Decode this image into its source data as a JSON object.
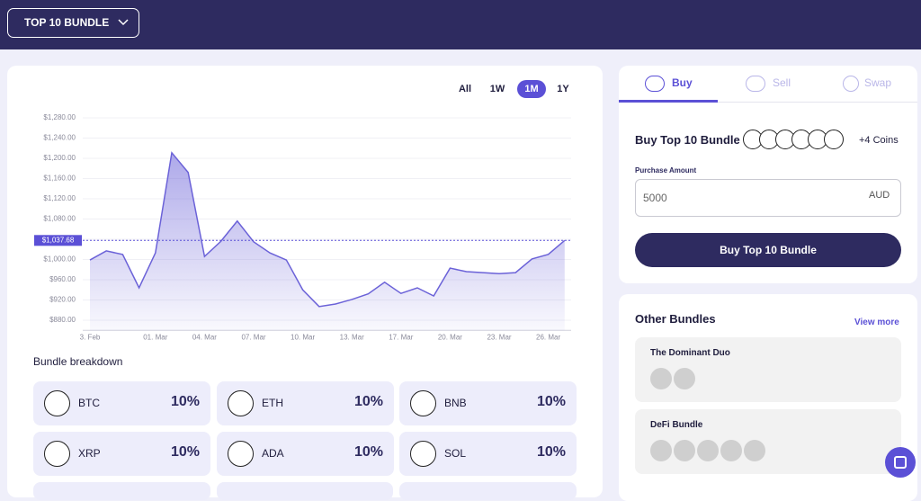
{
  "header": {
    "dropdown": "TOP 10 BUNDLE"
  },
  "chart": {
    "type": "line",
    "ranges": [
      "All",
      "1W",
      "1M",
      "1Y"
    ],
    "active_range": "1M",
    "categories": [
      "3. Feb",
      null,
      null,
      null,
      "01. Mar",
      null,
      null,
      "04. Mar",
      null,
      null,
      "07. Mar",
      null,
      null,
      "10. Mar",
      null,
      null,
      "13. Mar",
      null,
      null,
      "17. Mar",
      null,
      null,
      "20. Mar",
      null,
      null,
      "23. Mar",
      null,
      null,
      "26. Mar",
      null
    ],
    "values": [
      999,
      1017,
      1010,
      944,
      1013,
      1211,
      1172,
      1006,
      1036,
      1076,
      1035,
      1013,
      999,
      940,
      907,
      912,
      921,
      932,
      955,
      933,
      944,
      928,
      983,
      976,
      974,
      972,
      974,
      1001,
      1010,
      1037.68
    ],
    "color": "#6b62d8",
    "ylim": [
      860,
      1300
    ],
    "yticks": [
      {
        "value": 880,
        "label": "$880.00"
      },
      {
        "value": 920,
        "label": "$920.00"
      },
      {
        "value": 960,
        "label": "$960.00"
      },
      {
        "value": 1000,
        "label": "$1,000.00"
      },
      {
        "value": 1040,
        "label": "$1,040.00"
      },
      {
        "value": 1080,
        "label": "$1,080.00"
      },
      {
        "value": 1120,
        "label": "$1,120.00"
      },
      {
        "value": 1160,
        "label": "$1,160.00"
      },
      {
        "value": 1200,
        "label": "$1,200.00"
      },
      {
        "value": 1240,
        "label": "$1,240.00"
      },
      {
        "value": 1280,
        "label": "$1,280.00"
      }
    ],
    "grid": true,
    "current": {
      "value": 1037.68,
      "label": "$1,037.68"
    }
  },
  "breakdown": {
    "title": "Bundle breakdown",
    "items": [
      {
        "name": "BTC",
        "share": "10%"
      },
      {
        "name": "ETH",
        "share": "10%"
      },
      {
        "name": "BNB",
        "share": "10%"
      },
      {
        "name": "XRP",
        "share": "10%"
      },
      {
        "name": "ADA",
        "share": "10%"
      },
      {
        "name": "SOL",
        "share": "10%"
      }
    ]
  },
  "trade": {
    "tabs": [
      "Buy",
      "Sell",
      "Swap"
    ],
    "heading": "Buy Top 10 Bundle",
    "extra_coins": "+4 Coins",
    "amount_label": "Purchase Amount",
    "amount": "5000",
    "currency": "AUD",
    "button": "Buy Top 10 Bundle"
  },
  "others": {
    "title": "Other Bundles",
    "view_more": "View more",
    "bundles": [
      {
        "name": "The Dominant Duo"
      },
      {
        "name": "DeFi Bundle"
      }
    ]
  }
}
